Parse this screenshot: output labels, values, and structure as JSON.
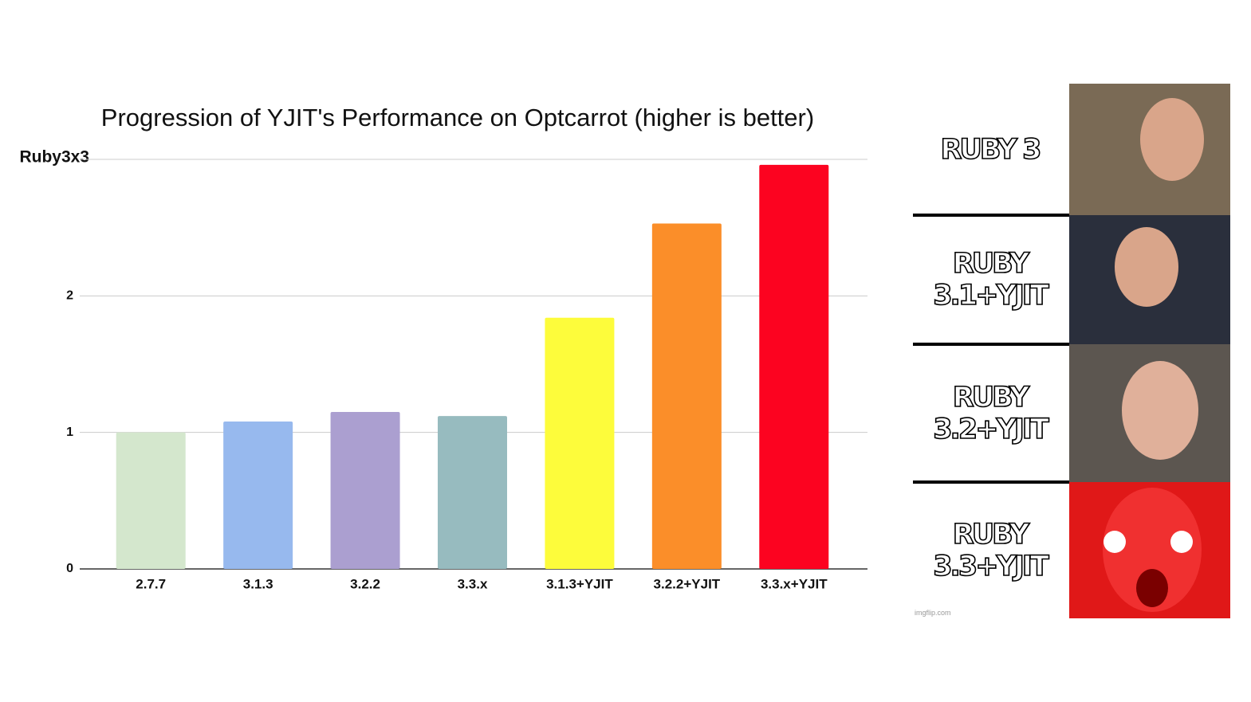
{
  "chart_data": {
    "type": "bar",
    "title": "Progression of YJIT's Performance on Optcarrot (higher is better)",
    "categories": [
      "2.7.7",
      "3.1.3",
      "3.2.2",
      "3.3.x",
      "3.1.3+YJIT",
      "3.2.2+YJIT",
      "3.3.x+YJIT"
    ],
    "values": [
      1.0,
      1.08,
      1.15,
      1.12,
      1.84,
      2.53,
      2.96
    ],
    "colors": [
      "#d4e7cd",
      "#97b9ee",
      "#ab9fd0",
      "#97bbbf",
      "#fdfc3b",
      "#fb8e29",
      "#fc0320"
    ],
    "ylim": [
      0,
      3
    ],
    "yticks": [
      0,
      1,
      2,
      {
        "value": 3,
        "label": "Ruby3x3"
      }
    ],
    "grid": true
  },
  "meme": {
    "panels": [
      "RUBY 3",
      "RUBY 3.1+YJIT",
      "RUBY 3.2+YJIT",
      "RUBY 3.3+YJIT"
    ],
    "watermark": "imgflip.com"
  }
}
